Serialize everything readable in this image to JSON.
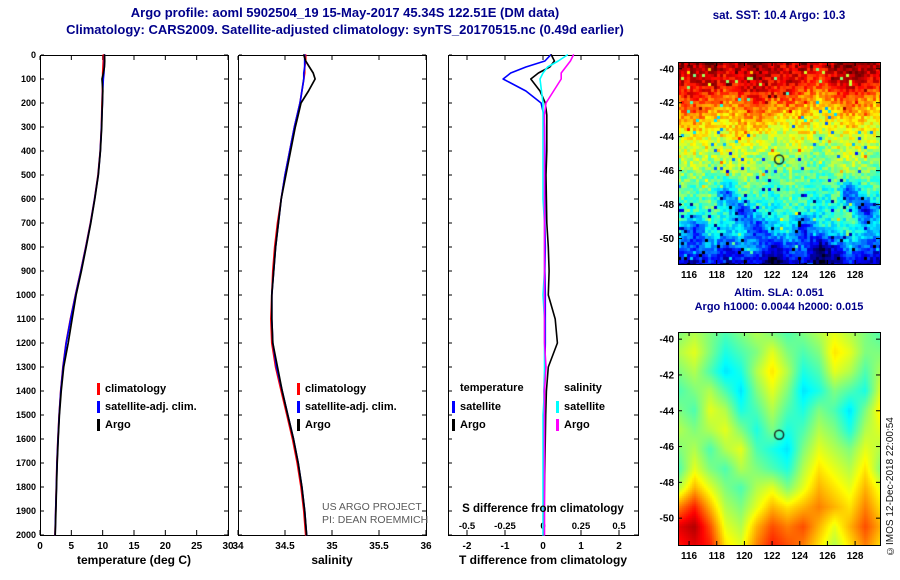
{
  "header": {
    "line1": "Argo profile: aoml 5902504_19 15-May-2017 45.34S 122.51E (DM data)",
    "line2": "Climatology: CARS2009. Satellite-adjusted climatology: synTS_20170515.nc (0.49d earlier)"
  },
  "misc": {
    "project_line1": "US ARGO PROJECT",
    "project_line2": "PI: DEAN ROEMMICH",
    "copyright": "©IMOS 12-Dec-2018 22:00:54"
  },
  "colors": {
    "title_navy": "#00008b",
    "climatology_red": "#ff0000",
    "satellite_blue": "#0000ff",
    "argo_black": "#000000",
    "sal_satellite_cyan": "#00ffff",
    "sal_argo_magenta": "#ff00ff"
  },
  "chart_data": [
    {
      "id": "temperature_profile",
      "type": "line",
      "xlabel": "temperature (deg C)",
      "xlim": [
        0,
        30
      ],
      "xticks": [
        0,
        5,
        10,
        15,
        20,
        25,
        30
      ],
      "ylim": [
        0,
        2000
      ],
      "yticks": [
        0,
        100,
        200,
        300,
        400,
        500,
        600,
        700,
        800,
        900,
        1000,
        1100,
        1200,
        1300,
        1400,
        1500,
        1600,
        1700,
        1800,
        1900,
        2000
      ],
      "depth": [
        0,
        25,
        50,
        75,
        100,
        150,
        200,
        250,
        300,
        400,
        500,
        600,
        700,
        800,
        900,
        1000,
        1100,
        1200,
        1300,
        1400,
        1500,
        1600,
        1700,
        1800,
        1900,
        2000
      ],
      "series": [
        {
          "name": "climatology",
          "color": "#ff0000",
          "values": [
            10.1,
            10.1,
            10.05,
            10.0,
            10.0,
            9.95,
            9.9,
            9.85,
            9.8,
            9.6,
            9.25,
            8.7,
            8.05,
            7.3,
            6.5,
            5.65,
            4.85,
            4.15,
            3.65,
            3.3,
            3.05,
            2.85,
            2.7,
            2.6,
            2.5,
            2.4
          ]
        },
        {
          "name": "satellite-adj. clim.",
          "color": "#0000ff",
          "values": [
            10.3,
            10.28,
            10.25,
            10.2,
            10.1,
            10.0,
            9.95,
            9.88,
            9.82,
            9.62,
            9.28,
            8.72,
            8.08,
            7.32,
            6.52,
            5.68,
            4.88,
            4.18,
            3.68,
            3.32,
            3.07,
            2.87,
            2.72,
            2.61,
            2.51,
            2.41
          ]
        },
        {
          "name": "Argo",
          "color": "#000000",
          "values": [
            10.3,
            10.32,
            10.28,
            10.12,
            9.9,
            10.02,
            9.96,
            9.9,
            9.84,
            9.64,
            9.3,
            8.75,
            8.1,
            7.38,
            6.6,
            5.76,
            5.12,
            4.5,
            3.78,
            3.38,
            3.1,
            2.9,
            2.74,
            2.63,
            2.53,
            2.43
          ]
        }
      ]
    },
    {
      "id": "salinity_profile",
      "type": "line",
      "xlabel": "salinity",
      "xlim": [
        34,
        36
      ],
      "xticks": [
        34,
        34.5,
        35,
        35.5,
        36
      ],
      "ylim": [
        0,
        2000
      ],
      "yticks": [
        0,
        100,
        200,
        300,
        400,
        500,
        600,
        700,
        800,
        900,
        1000,
        1100,
        1200,
        1300,
        1400,
        1500,
        1600,
        1700,
        1800,
        1900,
        2000
      ],
      "depth": [
        0,
        25,
        50,
        75,
        100,
        150,
        200,
        250,
        300,
        400,
        500,
        600,
        700,
        800,
        900,
        1000,
        1100,
        1200,
        1300,
        1400,
        1500,
        1600,
        1700,
        1800,
        1900,
        2000
      ],
      "series": [
        {
          "name": "climatology",
          "color": "#ff0000",
          "values": [
            34.72,
            34.72,
            34.71,
            34.71,
            34.7,
            34.68,
            34.66,
            34.63,
            34.6,
            34.55,
            34.5,
            34.46,
            34.42,
            34.39,
            34.37,
            34.36,
            34.35,
            34.36,
            34.4,
            34.46,
            34.52,
            34.58,
            34.63,
            34.67,
            34.7,
            34.72
          ]
        },
        {
          "name": "satellite-adj. clim.",
          "color": "#0000ff",
          "values": [
            34.71,
            34.71,
            34.71,
            34.7,
            34.7,
            34.68,
            34.66,
            34.63,
            34.6,
            34.55,
            34.5,
            34.46,
            34.43,
            34.4,
            34.38,
            34.36,
            34.36,
            34.37,
            34.41,
            34.47,
            34.53,
            34.59,
            34.64,
            34.68,
            34.71,
            34.73
          ]
        },
        {
          "name": "Argo",
          "color": "#000000",
          "values": [
            34.7,
            34.72,
            34.76,
            34.8,
            34.82,
            34.75,
            34.67,
            34.64,
            34.61,
            34.56,
            34.51,
            34.46,
            34.43,
            34.4,
            34.38,
            34.36,
            34.36,
            34.37,
            34.42,
            34.47,
            34.53,
            34.59,
            34.64,
            34.68,
            34.71,
            34.73
          ]
        }
      ]
    },
    {
      "id": "difference_from_climatology",
      "type": "line",
      "xlabel_top": "S difference from climatology",
      "xlabel_bottom": "T difference from climatology",
      "xlim_T": [
        -2.5,
        2.5
      ],
      "xticks_T": [
        -2,
        -1,
        0,
        1,
        2
      ],
      "xlim_S": [
        -0.625,
        0.625
      ],
      "xticks_S": [
        -0.5,
        -0.25,
        0,
        0.25,
        0.5
      ],
      "ylim": [
        0,
        2000
      ],
      "yticks": [
        0,
        100,
        200,
        300,
        400,
        500,
        600,
        700,
        800,
        900,
        1000,
        1100,
        1200,
        1300,
        1400,
        1500,
        1600,
        1700,
        1800,
        1900,
        2000
      ],
      "depth": [
        0,
        25,
        50,
        75,
        100,
        150,
        200,
        250,
        300,
        400,
        500,
        600,
        700,
        800,
        900,
        1000,
        1100,
        1200,
        1300,
        1400,
        1500,
        1600,
        1700,
        1800,
        1900,
        2000
      ],
      "legend_groups": [
        {
          "header": "temperature",
          "entries": [
            {
              "label": "satellite",
              "color": "#0000ff"
            },
            {
              "label": "Argo",
              "color": "#000000"
            }
          ]
        },
        {
          "header": "salinity",
          "entries": [
            {
              "label": "satellite",
              "color": "#00ffff"
            },
            {
              "label": "Argo",
              "color": "#ff00ff"
            }
          ]
        }
      ],
      "series": [
        {
          "name": "T satellite",
          "axis": "T",
          "color": "#0000ff",
          "values": [
            0.2,
            0.05,
            -0.45,
            -0.85,
            -1.05,
            -0.45,
            -0.05,
            0.02,
            0.04,
            0.05,
            0.05,
            0.05,
            0.05,
            0.06,
            0.05,
            0.06,
            0.06,
            0.06,
            0.05,
            0.03,
            0.03,
            0.02,
            0.02,
            0.01,
            0.01,
            0.01
          ]
        },
        {
          "name": "T Argo",
          "axis": "T",
          "color": "#000000",
          "values": [
            0.22,
            0.3,
            0.18,
            -0.12,
            -0.32,
            -0.08,
            0.06,
            0.1,
            0.1,
            0.1,
            0.08,
            0.09,
            0.1,
            0.14,
            0.16,
            0.14,
            0.32,
            0.38,
            0.14,
            0.09,
            0.07,
            0.06,
            0.05,
            0.04,
            0.03,
            0.03
          ]
        },
        {
          "name": "S satellite",
          "axis": "S",
          "color": "#00ffff",
          "values": [
            0.16,
            0.1,
            0.03,
            0.0,
            -0.02,
            -0.01,
            0.0,
            0.0,
            0.0,
            0.0,
            0.0,
            0.0,
            0.01,
            0.01,
            0.01,
            0.0,
            0.01,
            0.01,
            0.01,
            0.01,
            0.0,
            0.0,
            0.0,
            0.0,
            0.0,
            0.0
          ]
        },
        {
          "name": "S Argo",
          "axis": "S",
          "color": "#ff00ff",
          "values": [
            0.2,
            0.18,
            0.15,
            0.12,
            0.12,
            0.07,
            0.02,
            0.01,
            0.01,
            0.01,
            0.01,
            0.01,
            0.01,
            0.01,
            0.01,
            0.01,
            0.01,
            0.01,
            0.02,
            0.01,
            0.01,
            0.01,
            0.01,
            0.01,
            0.01,
            0.01
          ]
        }
      ]
    },
    {
      "id": "sst_map",
      "type": "heatmap",
      "title": "sat. SST: 10.4 Argo: 10.3",
      "lon_ticks": [
        116,
        118,
        120,
        122,
        124,
        126,
        128
      ],
      "lat_ticks": [
        -40,
        -42,
        -44,
        -46,
        -48,
        -50
      ],
      "lon_range": [
        115.2,
        129.8
      ],
      "lat_range": [
        -39.6,
        -51.5
      ],
      "marker": {
        "lon": 122.51,
        "lat": -45.34
      },
      "grid": [
        [
          0.98,
          0.95,
          1.0,
          0.92,
          0.96,
          1.0,
          0.94,
          0.9,
          0.97,
          0.88,
          0.95,
          1.0,
          0.96,
          0.92
        ],
        [
          0.92,
          0.9,
          0.95,
          0.85,
          0.9,
          0.95,
          0.88,
          0.92,
          0.85,
          0.8,
          0.9,
          0.95,
          0.9,
          0.86
        ],
        [
          0.8,
          0.85,
          0.78,
          0.72,
          0.8,
          0.85,
          0.75,
          0.8,
          0.73,
          0.68,
          0.75,
          0.8,
          0.74,
          0.7
        ],
        [
          0.7,
          0.74,
          0.68,
          0.64,
          0.7,
          0.75,
          0.66,
          0.62,
          0.68,
          0.6,
          0.64,
          0.7,
          0.66,
          0.62
        ],
        [
          0.6,
          0.64,
          0.58,
          0.6,
          0.65,
          0.6,
          0.55,
          0.58,
          0.62,
          0.54,
          0.58,
          0.63,
          0.6,
          0.56
        ],
        [
          0.55,
          0.57,
          0.53,
          0.58,
          0.55,
          0.52,
          0.56,
          0.5,
          0.54,
          0.48,
          0.53,
          0.57,
          0.53,
          0.5
        ],
        [
          0.5,
          0.53,
          0.47,
          0.5,
          0.54,
          0.5,
          0.46,
          0.5,
          0.47,
          0.44,
          0.5,
          0.53,
          0.49,
          0.46
        ],
        [
          0.47,
          0.44,
          0.5,
          0.18,
          0.48,
          0.44,
          0.42,
          0.47,
          0.44,
          0.4,
          0.44,
          0.12,
          0.44,
          0.42
        ],
        [
          0.44,
          0.42,
          0.46,
          0.4,
          0.13,
          0.42,
          0.38,
          0.44,
          0.4,
          0.38,
          0.42,
          0.44,
          0.08,
          0.4
        ],
        [
          0.4,
          0.12,
          0.42,
          0.36,
          0.4,
          0.08,
          0.36,
          0.4,
          0.1,
          0.36,
          0.4,
          0.42,
          0.36,
          0.34
        ],
        [
          0.25,
          0.18,
          0.3,
          0.12,
          0.25,
          0.3,
          0.05,
          0.2,
          0.25,
          -0.05,
          0.12,
          0.3,
          0.2,
          0.14
        ],
        [
          0.1,
          0.05,
          0.15,
          0.02,
          0.08,
          0.1,
          -0.1,
          0.05,
          0.08,
          -0.08,
          0.02,
          0.1,
          0.06,
          0.0
        ]
      ]
    },
    {
      "id": "sla_map",
      "type": "heatmap",
      "title_line1": "Altim. SLA: 0.051",
      "title_line2": "Argo h1000: 0.0044 h2000: 0.015",
      "lon_ticks": [
        116,
        118,
        120,
        122,
        124,
        126,
        128
      ],
      "lat_ticks": [
        -40,
        -42,
        -44,
        -46,
        -48,
        -50
      ],
      "lon_range": [
        115.2,
        129.8
      ],
      "lat_range": [
        -39.6,
        -51.5
      ],
      "marker": {
        "lon": 122.51,
        "lat": -45.34
      },
      "grid": [
        [
          0.5,
          0.55,
          0.5,
          0.45,
          0.5,
          0.55,
          0.5,
          0.45,
          0.5,
          0.55,
          0.6,
          0.55,
          0.5,
          0.45
        ],
        [
          0.55,
          0.6,
          0.5,
          0.4,
          0.45,
          0.5,
          0.6,
          0.5,
          0.45,
          0.5,
          0.65,
          0.6,
          0.5,
          0.5
        ],
        [
          0.5,
          0.55,
          0.45,
          0.35,
          0.4,
          0.55,
          0.65,
          0.55,
          0.4,
          0.45,
          0.6,
          0.55,
          0.45,
          0.55
        ],
        [
          0.45,
          0.5,
          0.55,
          0.45,
          0.35,
          0.5,
          0.6,
          0.5,
          0.35,
          0.4,
          0.5,
          0.45,
          0.4,
          0.6
        ],
        [
          0.5,
          0.45,
          0.6,
          0.55,
          0.4,
          0.45,
          0.55,
          0.45,
          0.4,
          0.5,
          0.45,
          0.35,
          0.5,
          0.65
        ],
        [
          0.55,
          0.5,
          0.55,
          0.6,
          0.5,
          0.4,
          0.5,
          0.4,
          0.45,
          0.55,
          0.5,
          0.4,
          0.55,
          0.6
        ],
        [
          0.5,
          0.55,
          0.45,
          0.55,
          0.6,
          0.45,
          0.4,
          0.35,
          0.5,
          0.6,
          0.55,
          0.5,
          0.6,
          0.55
        ],
        [
          0.45,
          0.6,
          0.5,
          0.45,
          0.55,
          0.5,
          0.45,
          0.4,
          0.55,
          0.65,
          0.6,
          0.55,
          0.65,
          0.5
        ],
        [
          0.55,
          0.7,
          0.6,
          0.5,
          0.45,
          0.55,
          0.6,
          0.5,
          0.6,
          0.7,
          0.65,
          0.6,
          0.7,
          0.6
        ],
        [
          0.75,
          0.85,
          0.7,
          0.55,
          0.5,
          0.6,
          0.7,
          0.65,
          0.7,
          0.75,
          0.7,
          0.65,
          0.75,
          0.65
        ],
        [
          0.9,
          0.95,
          0.8,
          0.6,
          0.55,
          0.7,
          0.8,
          0.75,
          0.8,
          0.7,
          0.6,
          0.7,
          0.8,
          0.7
        ],
        [
          0.85,
          0.9,
          0.85,
          0.65,
          0.6,
          0.75,
          0.85,
          0.8,
          0.75,
          0.65,
          0.55,
          0.65,
          0.75,
          0.65
        ]
      ]
    }
  ]
}
